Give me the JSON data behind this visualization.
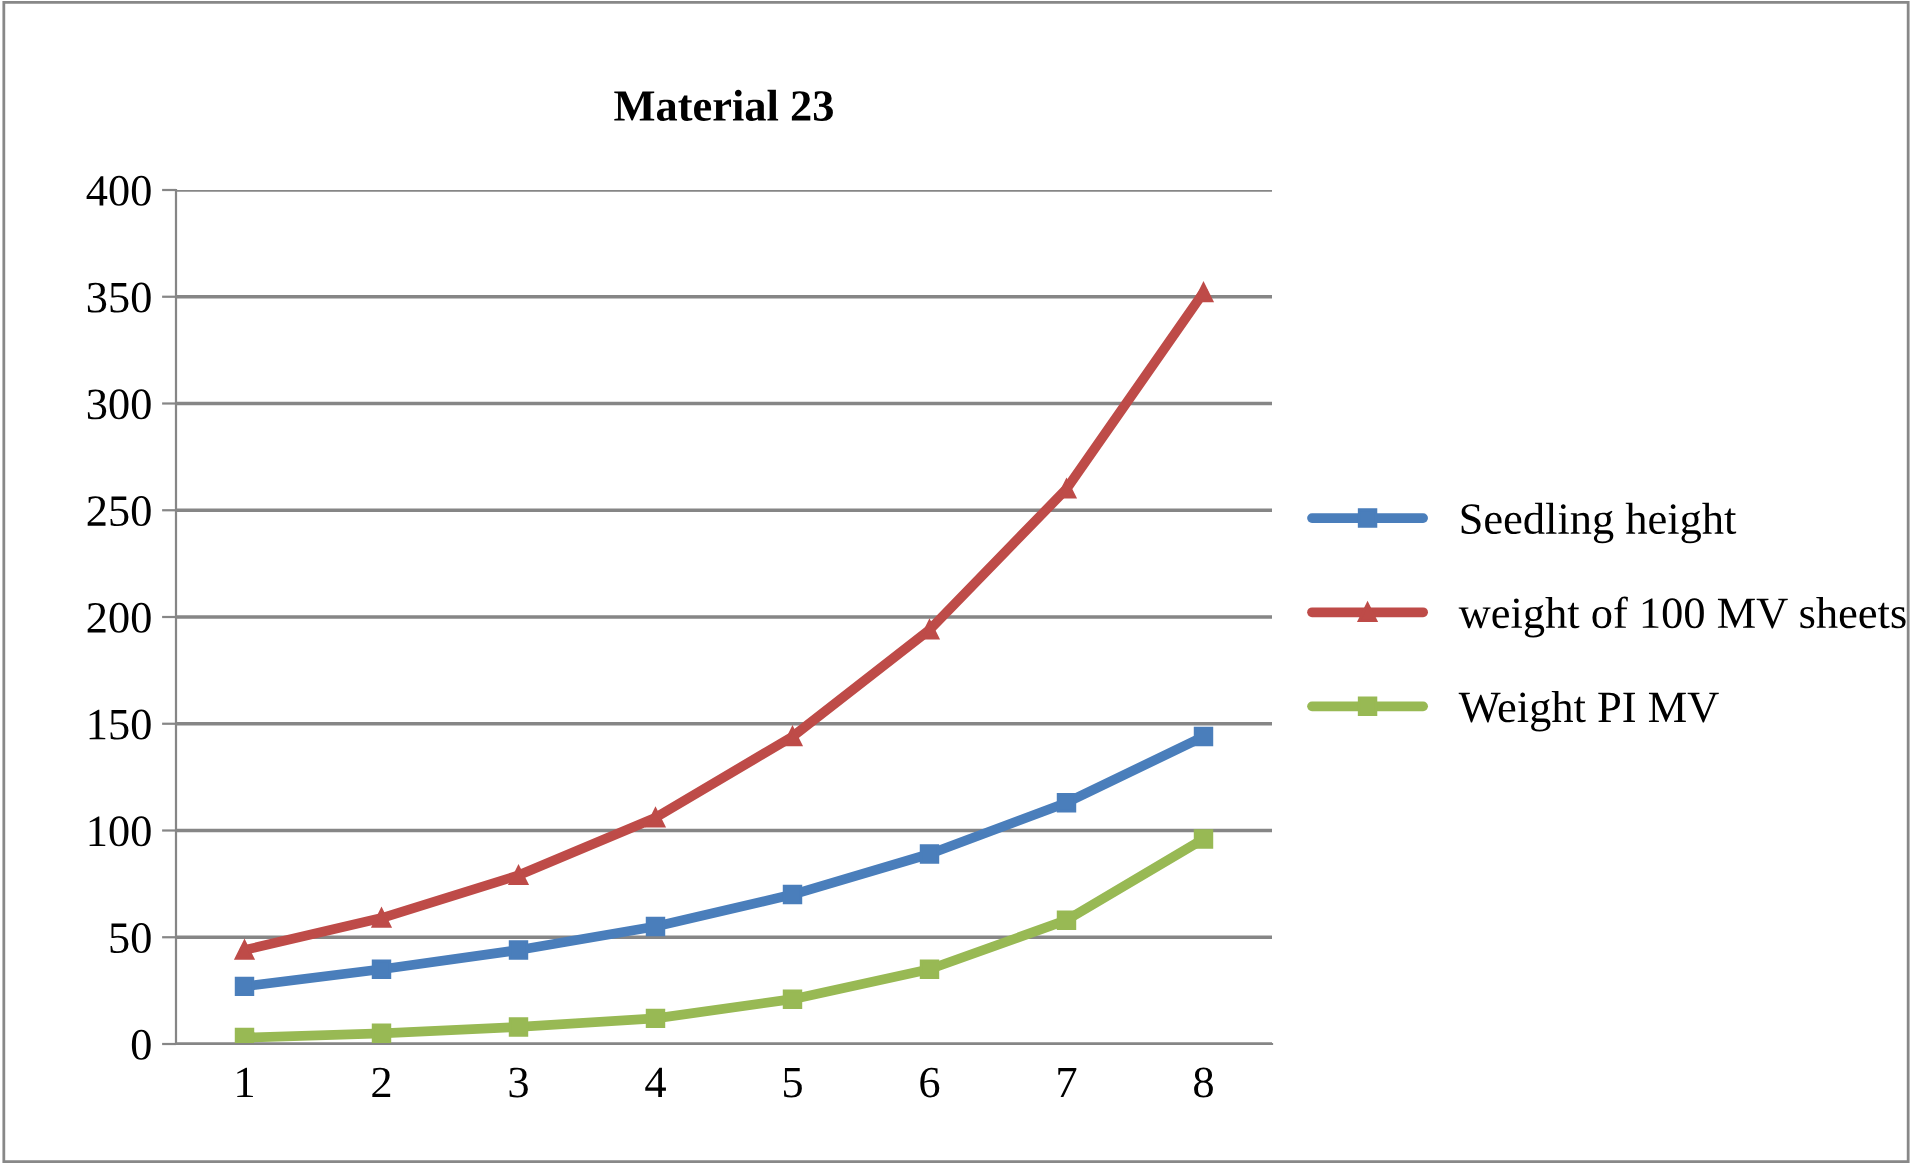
{
  "chart_data": {
    "type": "line",
    "title": "Material 23",
    "categories": [
      "1",
      "2",
      "3",
      "4",
      "5",
      "6",
      "7",
      "8"
    ],
    "series": [
      {
        "name": "Seedling height",
        "color": "#4a7ebb",
        "marker": "square",
        "values": [
          27,
          35,
          44,
          55,
          70,
          89,
          113,
          144
        ]
      },
      {
        "name": "weight of 100 MV sheets",
        "color": "#be4b48",
        "marker": "triangle",
        "values": [
          44,
          59,
          79,
          106,
          144,
          194,
          260,
          352
        ]
      },
      {
        "name": "Weight PI MV",
        "color": "#98b954",
        "marker": "square",
        "values": [
          3,
          5,
          8,
          12,
          21,
          35,
          58,
          96
        ]
      }
    ],
    "ylim": [
      0,
      400
    ],
    "yticks": [
      0,
      50,
      100,
      150,
      200,
      250,
      300,
      350,
      400
    ],
    "grid": "y",
    "legend": "right",
    "line_style": "solid"
  }
}
